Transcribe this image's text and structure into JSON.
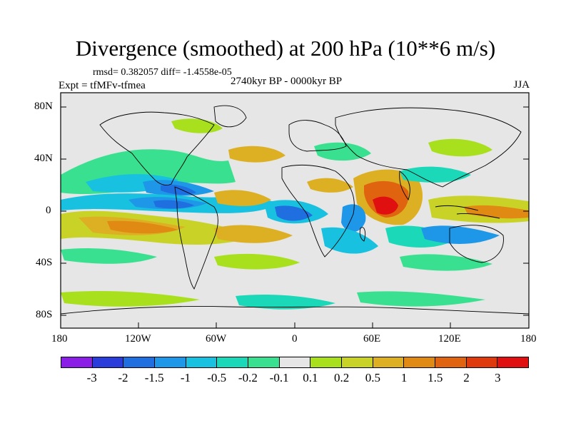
{
  "title": "Divergence (smoothed) at 200 hPa (10**6 m/s)",
  "stats": "rmsd= 0.382057 diff= -1.4558e-05",
  "expt": "Expt = tfMFv-tfmea",
  "period": "2740kyr BP - 0000kyr BP",
  "season": "JJA",
  "lat_ticks": [
    "80N",
    "40N",
    "0",
    "40S",
    "80S"
  ],
  "lon_ticks": [
    "180",
    "120W",
    "60W",
    "0",
    "60E",
    "120E",
    "180"
  ],
  "colorbar": {
    "labels": [
      "-3",
      "-2",
      "-1.5",
      "-1",
      "-0.5",
      "-0.2",
      "-0.1",
      "0.1",
      "0.2",
      "0.5",
      "1",
      "1.5",
      "2",
      "3"
    ],
    "colors": [
      "#8a1ee6",
      "#2a3ddb",
      "#1f6fe0",
      "#1e97e8",
      "#18c1df",
      "#1ad8b8",
      "#38e08f",
      "#e6e6e6",
      "#a8e01e",
      "#c9d327",
      "#dcb022",
      "#e08a14",
      "#e0640f",
      "#df3a0d",
      "#e01010"
    ]
  },
  "colors": {
    "background_field": "#e6e6e6",
    "coastline": "#000000"
  }
}
